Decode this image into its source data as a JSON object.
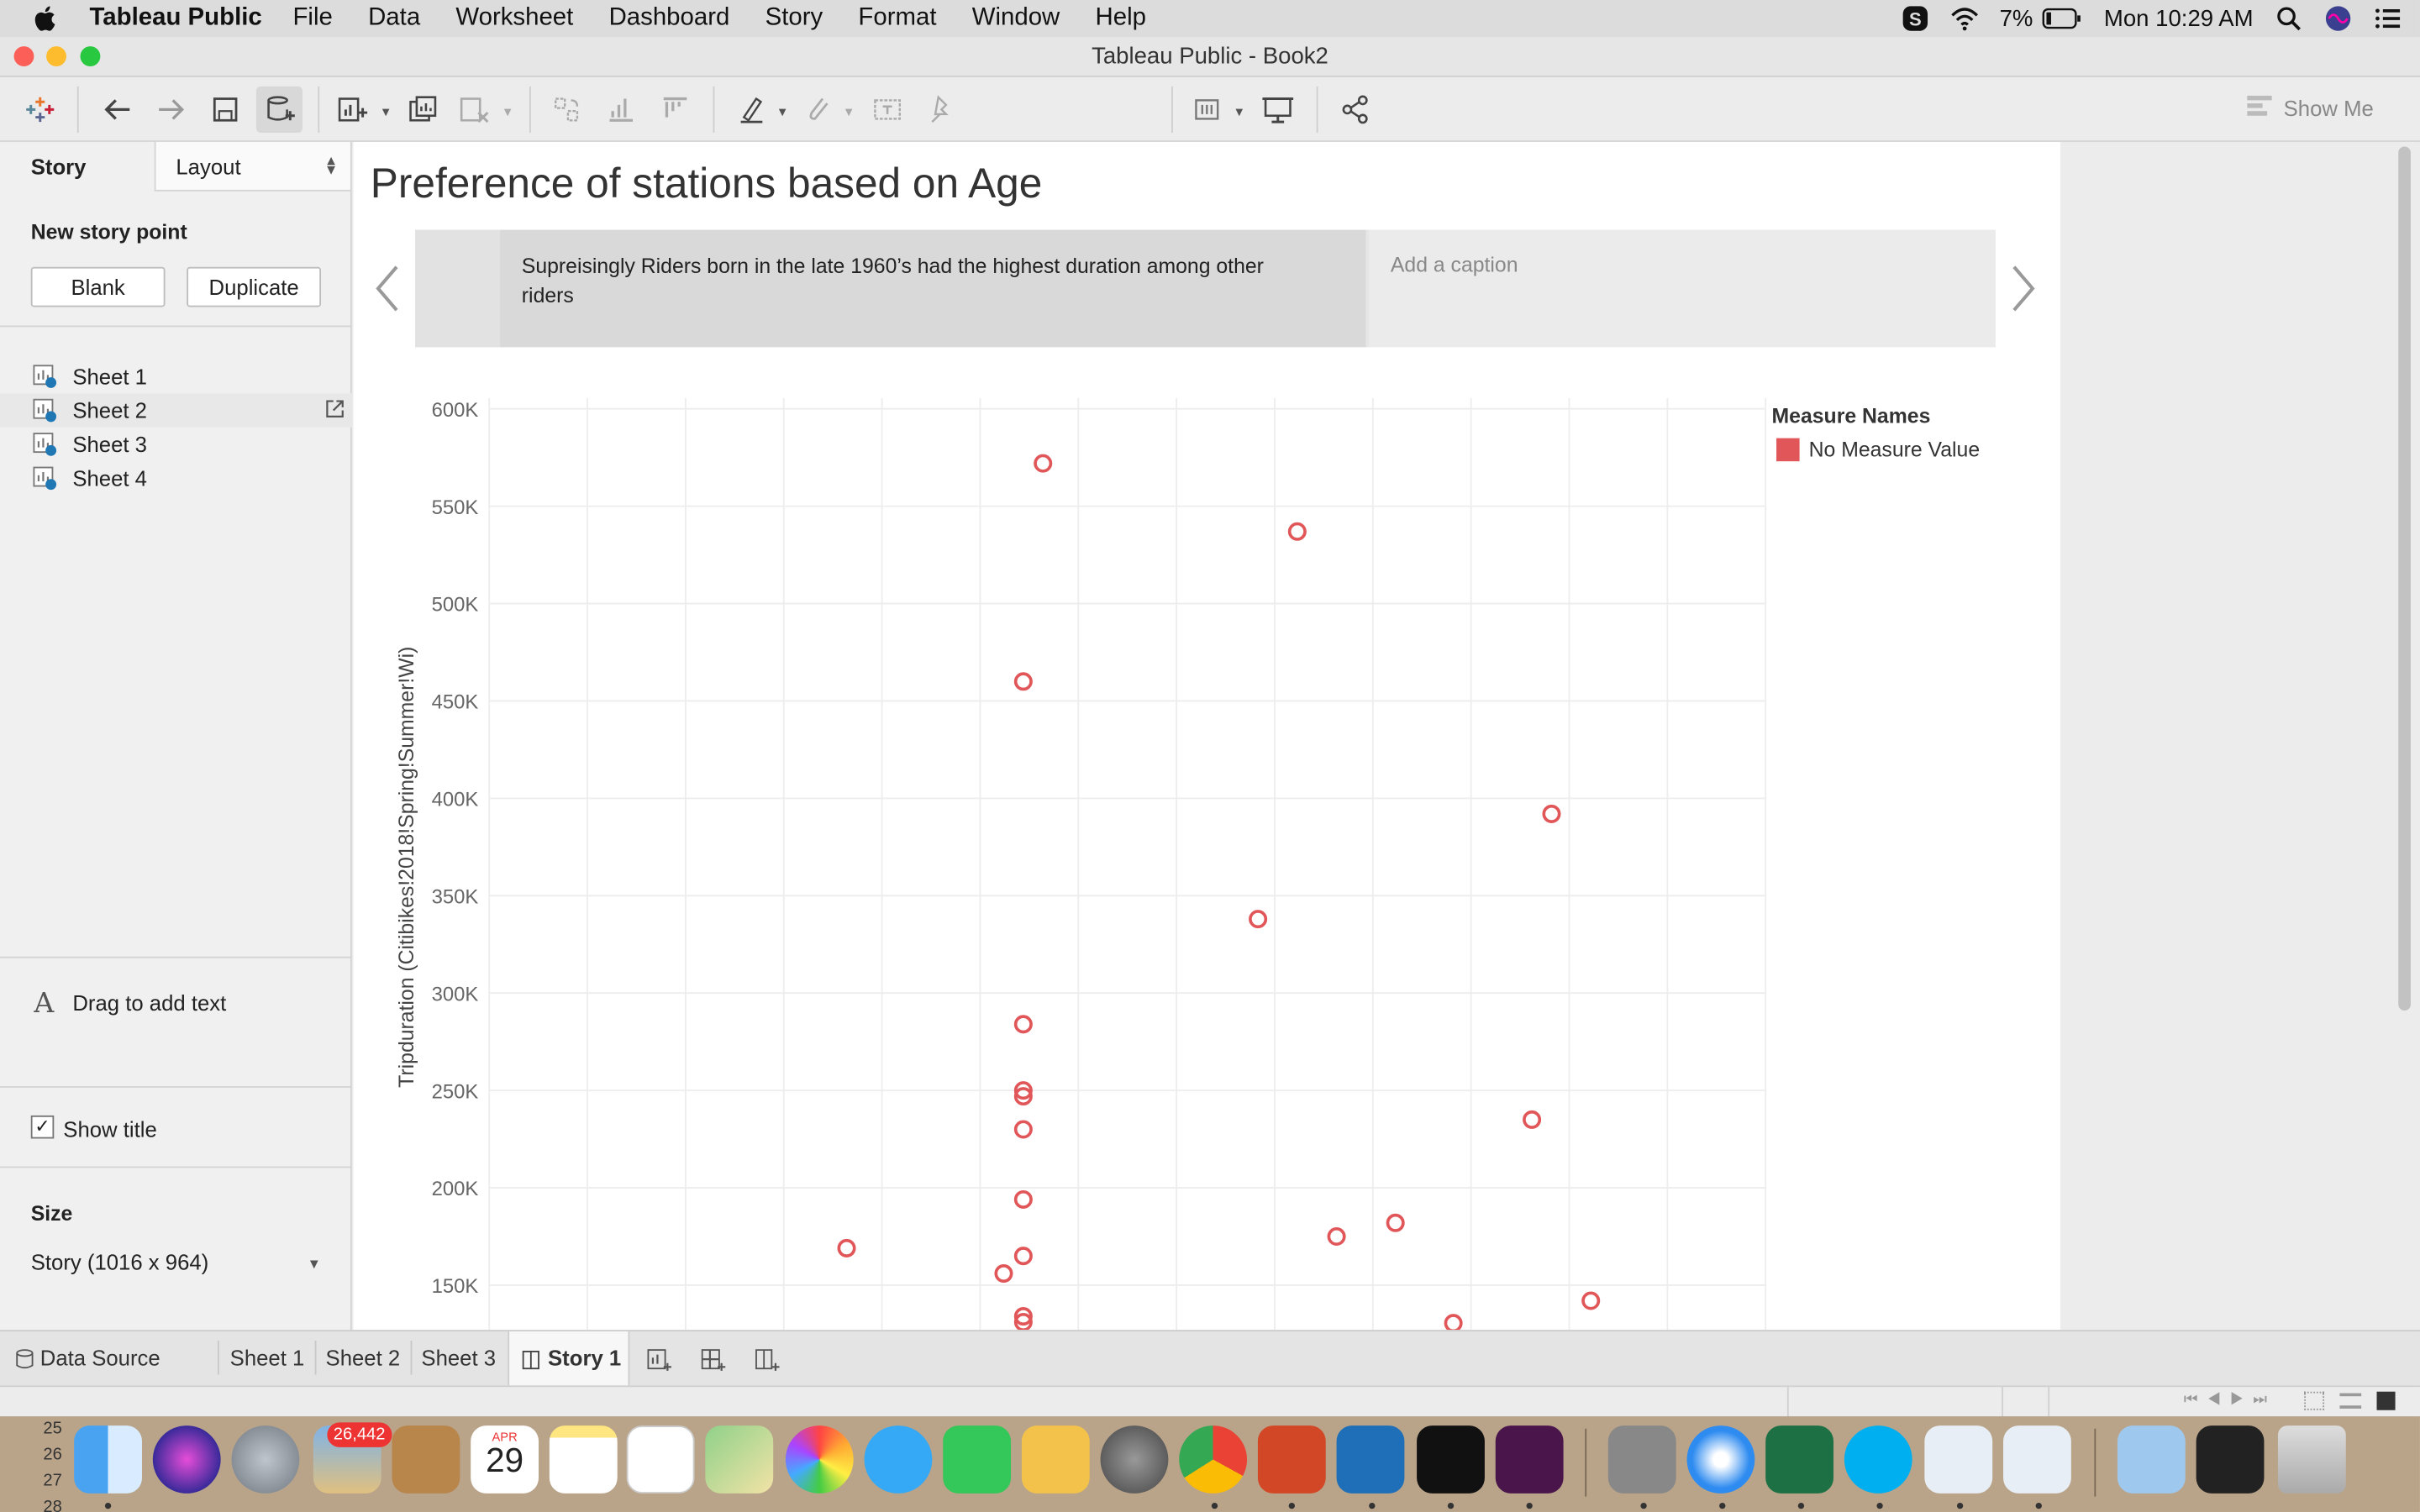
{
  "menubar": {
    "app_name": "Tableau Public",
    "menus": [
      "File",
      "Data",
      "Worksheet",
      "Dashboard",
      "Story",
      "Format",
      "Window",
      "Help"
    ],
    "battery": "7%",
    "clock": "Mon 10:29 AM"
  },
  "window": {
    "title": "Tableau Public - Book2"
  },
  "toolbar": {
    "show_me": "Show Me"
  },
  "story_pane": {
    "story_tab": "Story",
    "layout_tab": "Layout",
    "new_story_point": "New story point",
    "blank_button": "Blank",
    "duplicate_button": "Duplicate",
    "sheets": [
      "Sheet 1",
      "Sheet 2",
      "Sheet 3",
      "Sheet 4"
    ],
    "drag_text": "Drag to add text",
    "text_icon": "A",
    "show_title_label": "Show title",
    "show_title_checked": true,
    "size_label": "Size",
    "size_value": "Story (1016 x 964)"
  },
  "story": {
    "title": "Preference of stations based on Age",
    "active_point_caption": "Supreisingly Riders born in the late 1960’s had the highest duration among other riders",
    "new_caption_placeholder": "Add a caption"
  },
  "chart_data": {
    "type": "scatter",
    "ylabel": "Tripduration (Citibikes!2018!Spring!Summer!Wi)",
    "ytick_labels": [
      "600K",
      "550K",
      "500K",
      "450K",
      "400K",
      "350K",
      "300K",
      "250K",
      "200K",
      "150K"
    ],
    "ylim": [
      130000,
      610000
    ],
    "grid": true,
    "marker": "open-circle",
    "color": "#e15759",
    "legend": {
      "title": "Measure Names",
      "items": [
        "No Measure Value"
      ],
      "placement": "right"
    },
    "x_column_count": 13,
    "points": [
      {
        "col": 5.64,
        "y": 572000
      },
      {
        "col": 8.23,
        "y": 537000
      },
      {
        "col": 5.44,
        "y": 460000
      },
      {
        "col": 10.82,
        "y": 392000
      },
      {
        "col": 7.83,
        "y": 338000
      },
      {
        "col": 5.44,
        "y": 284000
      },
      {
        "col": 5.44,
        "y": 250000
      },
      {
        "col": 5.44,
        "y": 247000
      },
      {
        "col": 5.44,
        "y": 230000
      },
      {
        "col": 10.62,
        "y": 235000
      },
      {
        "col": 9.23,
        "y": 182000
      },
      {
        "col": 8.63,
        "y": 175000
      },
      {
        "col": 5.44,
        "y": 194000
      },
      {
        "col": 3.64,
        "y": 169000
      },
      {
        "col": 5.44,
        "y": 165000
      },
      {
        "col": 5.24,
        "y": 156000
      },
      {
        "col": 11.22,
        "y": 142000
      },
      {
        "col": 5.44,
        "y": 134000
      },
      {
        "col": 5.44,
        "y": 131000
      },
      {
        "col": 9.82,
        "y": 130500
      }
    ]
  },
  "bottom_tabs": {
    "data_source": "Data Source",
    "sheets": [
      "Sheet 1",
      "Sheet 2",
      "Sheet 3"
    ],
    "active": "Story 1"
  },
  "dock": {
    "row_numbers": [
      "25",
      "26",
      "27",
      "28"
    ],
    "mail_badge": "26,442",
    "calendar_month": "APR",
    "calendar_day": "29"
  }
}
